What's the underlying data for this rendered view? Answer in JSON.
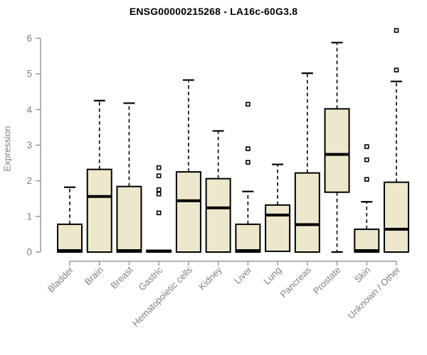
{
  "window": {
    "background": "#ffffff"
  },
  "chart_data": {
    "type": "boxplot",
    "title": "ENSG00000215268 - LA16c-60G3.8",
    "xlabel": "",
    "ylabel": "Expression",
    "ylim": [
      0,
      6.3
    ],
    "yticks": [
      0,
      1,
      2,
      3,
      4,
      5,
      6
    ],
    "grid": false,
    "legend": "none",
    "categories": [
      "Bladder",
      "Brain",
      "Breast",
      "Gastric",
      "Hematopoietic cells",
      "Kidney",
      "Liver",
      "Lung",
      "Pancreas",
      "Prostate",
      "Skin",
      "Unknown / Other"
    ],
    "boxes": [
      {
        "category": "Bladder",
        "whisker_low": 0,
        "q1": 0,
        "median": 0.04,
        "q3": 0.78,
        "whisker_high": 1.82,
        "outliers": []
      },
      {
        "category": "Brain",
        "whisker_low": 0,
        "q1": 0,
        "median": 1.56,
        "q3": 2.32,
        "whisker_high": 4.25,
        "outliers": []
      },
      {
        "category": "Breast",
        "whisker_low": 0,
        "q1": 0,
        "median": 0.04,
        "q3": 1.84,
        "whisker_high": 4.18,
        "outliers": []
      },
      {
        "category": "Gastric",
        "whisker_low": 0,
        "q1": 0,
        "median": 0.03,
        "q3": 0.05,
        "whisker_high": 0.05,
        "outliers": [
          1.1,
          1.63,
          1.75,
          2.14,
          2.37
        ]
      },
      {
        "category": "Hematopoietic cells",
        "whisker_low": 0,
        "q1": 0,
        "median": 1.44,
        "q3": 2.25,
        "whisker_high": 4.83,
        "outliers": []
      },
      {
        "category": "Kidney",
        "whisker_low": 0,
        "q1": 0,
        "median": 1.24,
        "q3": 2.06,
        "whisker_high": 3.4,
        "outliers": []
      },
      {
        "category": "Liver",
        "whisker_low": 0,
        "q1": 0,
        "median": 0.04,
        "q3": 0.78,
        "whisker_high": 1.7,
        "outliers": [
          2.52,
          2.9,
          4.15
        ]
      },
      {
        "category": "Lung",
        "whisker_low": 0,
        "q1": 0.02,
        "median": 1.04,
        "q3": 1.32,
        "whisker_high": 2.46,
        "outliers": []
      },
      {
        "category": "Pancreas",
        "whisker_low": 0,
        "q1": 0,
        "median": 0.77,
        "q3": 2.22,
        "whisker_high": 5.02,
        "outliers": []
      },
      {
        "category": "Prostate",
        "whisker_low": 0,
        "q1": 1.68,
        "median": 2.74,
        "q3": 4.02,
        "whisker_high": 5.88,
        "outliers": []
      },
      {
        "category": "Skin",
        "whisker_low": 0,
        "q1": 0,
        "median": 0.04,
        "q3": 0.64,
        "whisker_high": 1.41,
        "outliers": [
          2.04,
          2.59,
          2.96
        ]
      },
      {
        "category": "Unknown / Other",
        "whisker_low": 0,
        "q1": 0,
        "median": 0.64,
        "q3": 1.96,
        "whisker_high": 4.79,
        "outliers": [
          5.11,
          6.22
        ]
      }
    ]
  },
  "colors": {
    "box_fill": "#EDE8CC",
    "box_border": "#000000",
    "median": "#000000",
    "whisker": "#000000",
    "outlier": "#000000",
    "axis_line": "#999999",
    "tick_label": "#808080",
    "title": "#000000",
    "background": "#ffffff"
  }
}
